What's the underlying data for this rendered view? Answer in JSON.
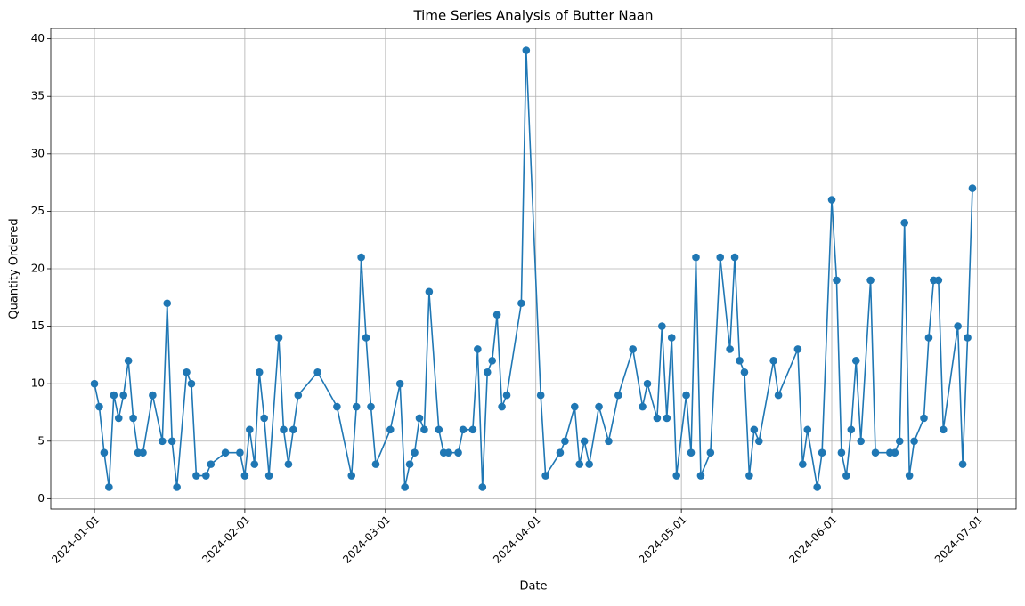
{
  "chart_data": {
    "type": "line",
    "title": "Time Series Analysis of Butter Naan",
    "x_label": "Date",
    "y_label": "Quantity Ordered",
    "x": [
      "2024-01-01",
      "2024-01-02",
      "2024-01-03",
      "2024-01-04",
      "2024-01-05",
      "2024-01-06",
      "2024-01-07",
      "2024-01-08",
      "2024-01-09",
      "2024-01-10",
      "2024-01-11",
      "2024-01-13",
      "2024-01-15",
      "2024-01-16",
      "2024-01-17",
      "2024-01-18",
      "2024-01-20",
      "2024-01-21",
      "2024-01-22",
      "2024-01-24",
      "2024-01-25",
      "2024-01-28",
      "2024-01-31",
      "2024-02-01",
      "2024-02-02",
      "2024-02-03",
      "2024-02-04",
      "2024-02-05",
      "2024-02-06",
      "2024-02-08",
      "2024-02-09",
      "2024-02-10",
      "2024-02-11",
      "2024-02-12",
      "2024-02-16",
      "2024-02-20",
      "2024-02-23",
      "2024-02-24",
      "2024-02-25",
      "2024-02-26",
      "2024-02-27",
      "2024-02-28",
      "2024-03-02",
      "2024-03-04",
      "2024-03-05",
      "2024-03-06",
      "2024-03-07",
      "2024-03-08",
      "2024-03-09",
      "2024-03-10",
      "2024-03-12",
      "2024-03-13",
      "2024-03-14",
      "2024-03-16",
      "2024-03-17",
      "2024-03-19",
      "2024-03-20",
      "2024-03-21",
      "2024-03-22",
      "2024-03-23",
      "2024-03-24",
      "2024-03-25",
      "2024-03-26",
      "2024-03-29",
      "2024-03-30",
      "2024-04-02",
      "2024-04-03",
      "2024-04-06",
      "2024-04-07",
      "2024-04-09",
      "2024-04-10",
      "2024-04-11",
      "2024-04-12",
      "2024-04-14",
      "2024-04-16",
      "2024-04-18",
      "2024-04-21",
      "2024-04-23",
      "2024-04-24",
      "2024-04-26",
      "2024-04-27",
      "2024-04-28",
      "2024-04-29",
      "2024-04-30",
      "2024-05-02",
      "2024-05-03",
      "2024-05-04",
      "2024-05-05",
      "2024-05-07",
      "2024-05-09",
      "2024-05-11",
      "2024-05-12",
      "2024-05-13",
      "2024-05-14",
      "2024-05-15",
      "2024-05-16",
      "2024-05-17",
      "2024-05-20",
      "2024-05-21",
      "2024-05-25",
      "2024-05-26",
      "2024-05-27",
      "2024-05-29",
      "2024-05-30",
      "2024-06-01",
      "2024-06-02",
      "2024-06-03",
      "2024-06-04",
      "2024-06-05",
      "2024-06-06",
      "2024-06-07",
      "2024-06-09",
      "2024-06-10",
      "2024-06-13",
      "2024-06-14",
      "2024-06-15",
      "2024-06-16",
      "2024-06-17",
      "2024-06-18",
      "2024-06-20",
      "2024-06-21",
      "2024-06-22",
      "2024-06-23",
      "2024-06-24",
      "2024-06-27",
      "2024-06-28",
      "2024-06-29",
      "2024-06-30"
    ],
    "series": [
      {
        "color": "#1f77b4",
        "values": [
          10,
          8,
          4,
          1,
          9,
          7,
          9,
          12,
          7,
          4,
          4,
          9,
          5,
          17,
          5,
          1,
          11,
          10,
          2,
          2,
          3,
          4,
          4,
          2,
          6,
          3,
          11,
          7,
          2,
          14,
          6,
          3,
          6,
          9,
          11,
          8,
          2,
          8,
          21,
          14,
          8,
          3,
          6,
          10,
          1,
          3,
          4,
          7,
          6,
          18,
          6,
          4,
          4,
          4,
          6,
          6,
          13,
          1,
          11,
          12,
          16,
          8,
          9,
          17,
          39,
          9,
          2,
          4,
          5,
          8,
          3,
          5,
          3,
          8,
          5,
          9,
          13,
          8,
          10,
          7,
          15,
          7,
          14,
          2,
          9,
          4,
          21,
          2,
          4,
          21,
          13,
          21,
          12,
          11,
          2,
          6,
          5,
          12,
          9,
          13,
          3,
          6,
          1,
          4,
          26,
          19,
          4,
          2,
          6,
          12,
          5,
          19,
          4,
          4,
          4,
          5,
          24,
          2,
          5,
          7,
          14,
          19,
          19,
          6,
          15,
          3,
          14,
          27
        ]
      }
    ],
    "xlim": [
      "2023-12-23",
      "2024-07-09"
    ],
    "xticks": [
      "2024-01-01",
      "2024-02-01",
      "2024-03-01",
      "2024-04-01",
      "2024-05-01",
      "2024-06-01",
      "2024-07-01"
    ],
    "ylim": [
      -0.9,
      40.9
    ],
    "yticks": [
      0,
      5,
      10,
      15,
      20,
      25,
      30,
      35,
      40
    ],
    "grid": true
  }
}
